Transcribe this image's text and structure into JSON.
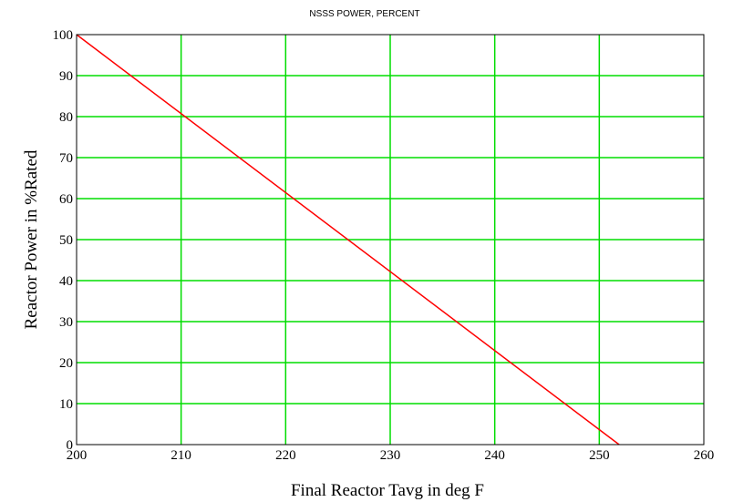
{
  "chart_data": {
    "type": "line",
    "title": "NSSS POWER, PERCENT",
    "xlabel": "Final Reactor Tavg in deg F",
    "ylabel": "Reactor Power in %Rated",
    "xlim": [
      200,
      260
    ],
    "ylim": [
      0,
      100
    ],
    "xticks": [
      "200",
      "210",
      "220",
      "230",
      "240",
      "250",
      "260"
    ],
    "yticks": [
      "0",
      "10",
      "20",
      "30",
      "40",
      "50",
      "60",
      "70",
      "80",
      "90",
      "100"
    ],
    "grid": true,
    "series": [
      {
        "x": [
          200,
          251.9
        ],
        "y": [
          100,
          0
        ]
      }
    ]
  },
  "colors": {
    "line": "#ff0000",
    "grid": "#00dd00",
    "frame": "#000000",
    "background": "#ffffff"
  }
}
